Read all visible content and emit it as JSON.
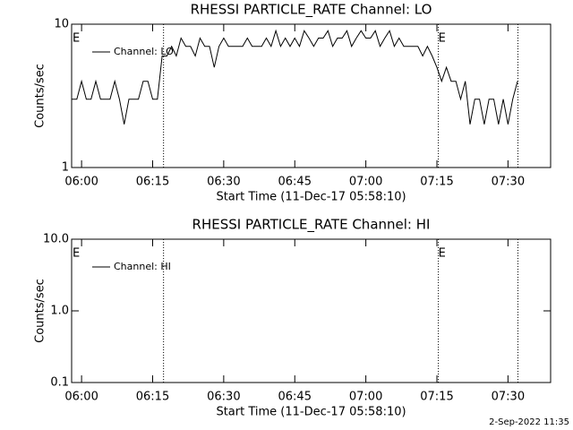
{
  "chart_data": [
    {
      "type": "line",
      "title": "RHESSI PARTICLE_RATE Channel: LO",
      "xlabel": "Start Time (11-Dec-17 05:58:10)",
      "ylabel": "Counts/sec",
      "log_y": true,
      "legend": "upper left",
      "xlim": [
        -2.1,
        99
      ],
      "xticks": [
        {
          "value": 0,
          "label": "06:00"
        },
        {
          "value": 15,
          "label": "06:15"
        },
        {
          "value": 30,
          "label": "06:30"
        },
        {
          "value": 45,
          "label": "06:45"
        },
        {
          "value": 60,
          "label": "07:00"
        },
        {
          "value": 75,
          "label": "07:15"
        },
        {
          "value": 90,
          "label": "07:30"
        }
      ],
      "ylim": [
        1,
        10
      ],
      "yticks": [
        1,
        10
      ],
      "events": [
        17.3,
        75.3,
        92.1
      ],
      "annotations": [
        {
          "x": -2,
          "text": "E"
        },
        {
          "x": 75.3,
          "text": "E"
        }
      ],
      "x": [
        -2,
        -1,
        0,
        1,
        2,
        3,
        4,
        5,
        6,
        7,
        8,
        9,
        10,
        11,
        12,
        13,
        14,
        15,
        16,
        17,
        18,
        19,
        20,
        21,
        22,
        23,
        24,
        25,
        26,
        27,
        28,
        29,
        30,
        31,
        32,
        33,
        34,
        35,
        36,
        37,
        38,
        39,
        40,
        41,
        42,
        43,
        44,
        45,
        46,
        47,
        48,
        49,
        50,
        51,
        52,
        53,
        54,
        55,
        56,
        57,
        58,
        59,
        60,
        61,
        62,
        63,
        64,
        65,
        66,
        67,
        68,
        69,
        70,
        71,
        72,
        73,
        74,
        75,
        76,
        77,
        78,
        79,
        80,
        81,
        82,
        83,
        84,
        85,
        86,
        87,
        88,
        89,
        90,
        91,
        92
      ],
      "series": [
        {
          "name": "Channel: LO",
          "color": "#000000",
          "values": [
            3,
            3,
            4,
            3,
            3,
            4,
            3,
            3,
            3,
            4,
            3,
            2,
            3,
            3,
            3,
            4,
            4,
            3,
            3,
            6,
            6,
            7,
            6,
            8,
            7,
            7,
            6,
            8,
            7,
            7,
            5,
            7,
            8,
            7,
            7,
            7,
            7,
            8,
            7,
            7,
            7,
            8,
            7,
            9,
            7,
            8,
            7,
            8,
            7,
            9,
            8,
            7,
            8,
            8,
            9,
            7,
            8,
            8,
            9,
            7,
            8,
            9,
            8,
            8,
            9,
            7,
            8,
            9,
            7,
            8,
            7,
            7,
            7,
            7,
            6,
            7,
            6,
            5,
            4,
            5,
            4,
            4,
            3,
            4,
            2,
            3,
            3,
            2,
            3,
            3,
            2,
            3,
            2,
            3,
            4
          ]
        }
      ]
    },
    {
      "type": "line",
      "title": "RHESSI PARTICLE_RATE Channel: HI",
      "xlabel": "Start Time (11-Dec-17 05:58:10)",
      "ylabel": "Counts/sec",
      "log_y": true,
      "legend": "upper left",
      "xlim": [
        -2.1,
        99
      ],
      "xticks": [
        {
          "value": 0,
          "label": "06:00"
        },
        {
          "value": 15,
          "label": "06:15"
        },
        {
          "value": 30,
          "label": "06:30"
        },
        {
          "value": 45,
          "label": "06:45"
        },
        {
          "value": 60,
          "label": "07:00"
        },
        {
          "value": 75,
          "label": "07:15"
        },
        {
          "value": 90,
          "label": "07:30"
        }
      ],
      "ylim": [
        0.1,
        10
      ],
      "yticks": [
        0.1,
        {
          "value": 1,
          "label": "1.0"
        },
        {
          "value": 10,
          "label": "10.0"
        }
      ],
      "events": [
        17.3,
        75.3,
        92.1
      ],
      "annotations": [
        {
          "x": -2,
          "text": "E"
        },
        {
          "x": 75.3,
          "text": "E"
        }
      ],
      "x": [],
      "series": [
        {
          "name": "Channel: HI",
          "color": "#000000",
          "values": []
        }
      ]
    }
  ],
  "footer": "2-Sep-2022 11:35"
}
